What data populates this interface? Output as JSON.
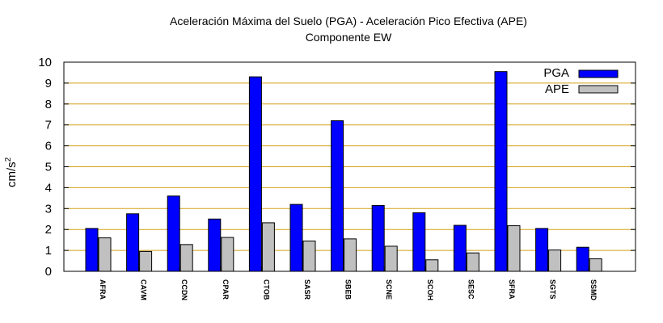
{
  "chart_data": {
    "type": "bar",
    "title": "Aceleración Máxima del Suelo (PGA) -  Aceleración Pico Efectiva (APE)",
    "subtitle": "Componente EW",
    "xlabel": "",
    "ylabel_base": "cm/s",
    "ylabel_exp": "2",
    "ylim": [
      0,
      10
    ],
    "yticks": [
      "0",
      "1",
      "2",
      "3",
      "4",
      "5",
      "6",
      "7",
      "8",
      "9",
      "10"
    ],
    "grid": "horizontal",
    "legend_position": "top-right",
    "categories": [
      "AFRA",
      "CAVM",
      "CCDN",
      "CPAR",
      "CTOB",
      "SASR",
      "SBEB",
      "SCNE",
      "SCOH",
      "SESC",
      "SFRA",
      "SGTS",
      "SSMD"
    ],
    "series": [
      {
        "name": "PGA",
        "color": "#0000ff",
        "values": [
          2.05,
          2.75,
          3.6,
          2.5,
          9.3,
          3.2,
          7.2,
          3.15,
          2.8,
          2.2,
          9.55,
          2.05,
          1.15
        ]
      },
      {
        "name": "APE",
        "color": "#c0c0c0",
        "values": [
          1.6,
          0.95,
          1.28,
          1.62,
          2.32,
          1.45,
          1.55,
          1.2,
          0.55,
          0.88,
          2.18,
          1.02,
          0.6
        ]
      }
    ],
    "grid_color": "#d4a017"
  }
}
